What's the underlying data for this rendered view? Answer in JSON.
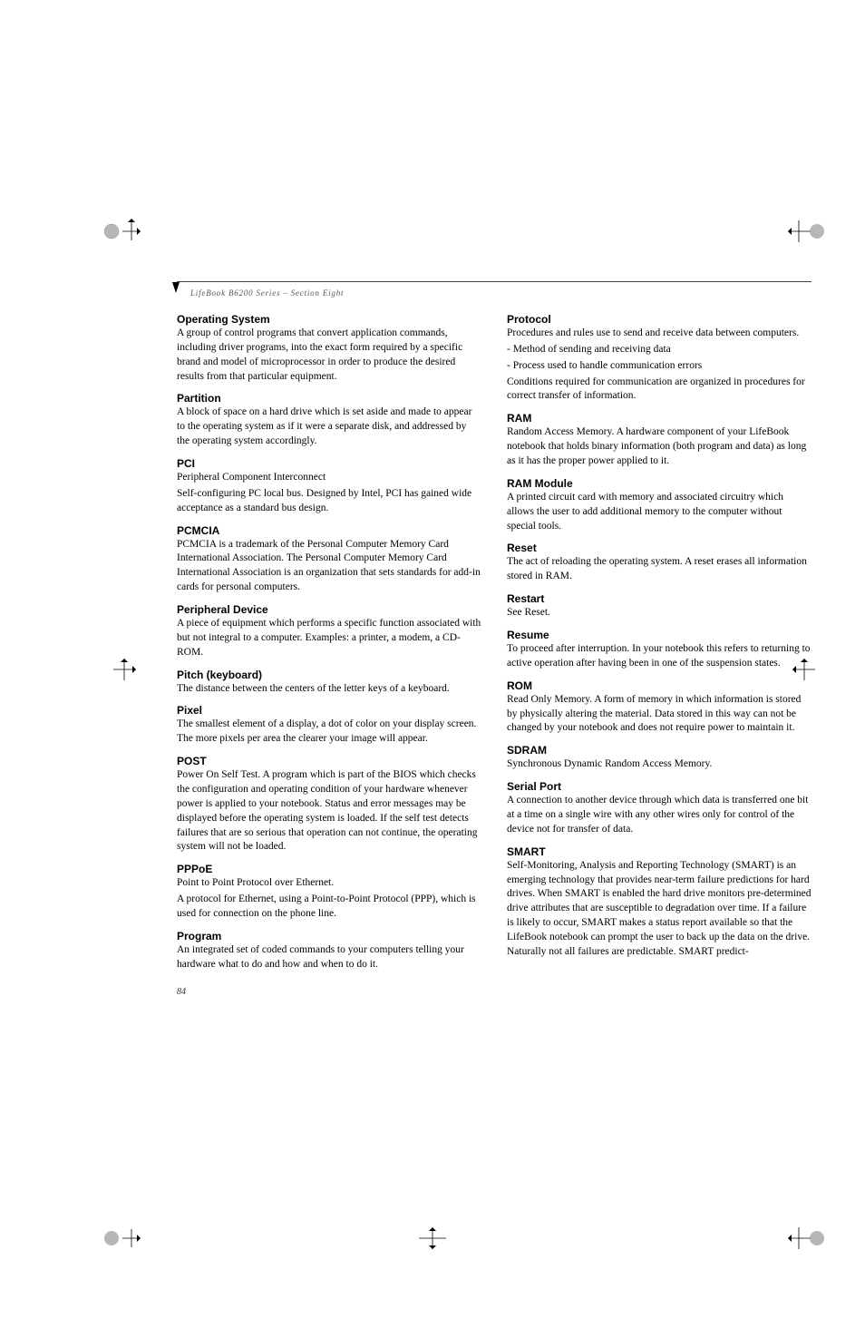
{
  "header": {
    "text": "LifeBook B6200 Series – Section Eight"
  },
  "pageNumber": "84",
  "leftColumn": [
    {
      "title": "Operating System",
      "paragraphs": [
        "A group of control programs that convert application commands, including driver programs, into the exact form required by a specific brand and model of microprocessor in order to produce the desired results from that particular equipment."
      ]
    },
    {
      "title": "Partition",
      "paragraphs": [
        "A block of space on a hard drive which is set aside and made to appear to the operating system as if it were a separate disk, and addressed by the operating system accordingly."
      ]
    },
    {
      "title": "PCI",
      "paragraphs": [
        "Peripheral Component Interconnect",
        "Self-configuring PC local bus. Designed by Intel, PCI has gained wide acceptance as a standard bus design."
      ]
    },
    {
      "title": "PCMCIA",
      "paragraphs": [
        "PCMCIA is a trademark of the Personal Computer Memory Card International Association. The Personal Computer Memory Card International Association is an organization that sets standards for add-in cards for personal computers."
      ]
    },
    {
      "title": "Peripheral Device",
      "paragraphs": [
        "A piece of equipment which performs a specific function associated with but not integral to a computer. Examples: a printer, a modem, a CD-ROM."
      ]
    },
    {
      "title": "Pitch (keyboard)",
      "paragraphs": [
        "The distance between the centers of the letter keys of a keyboard."
      ]
    },
    {
      "title": "Pixel",
      "paragraphs": [
        "The smallest element of a display, a dot of color on your display screen. The more pixels per area the clearer your image will appear."
      ]
    },
    {
      "title": "POST",
      "paragraphs": [
        "Power On Self Test. A program which is part of the BIOS which checks the configuration and operating condition of your hardware whenever power is applied to your notebook. Status and error messages may be displayed before the operating system is loaded. If the self test detects failures that are so serious that operation can not continue, the operating system will not be loaded."
      ]
    },
    {
      "title": "PPPoE",
      "paragraphs": [
        "Point to Point Protocol over Ethernet.",
        "A protocol for Ethernet, using a Point-to-Point Protocol (PPP), which is used for connection on the phone line."
      ]
    },
    {
      "title": "Program",
      "paragraphs": [
        "An integrated set of coded commands to your computers telling your hardware what to do and how and when to do it."
      ]
    }
  ],
  "rightColumn": [
    {
      "title": "Protocol",
      "paragraphs": [
        "Procedures and rules use to send and receive data between computers.",
        "- Method of sending and receiving data",
        "- Process used to handle communication errors",
        "Conditions required for communication are organized in procedures for correct transfer of information."
      ]
    },
    {
      "title": "RAM",
      "paragraphs": [
        "Random Access Memory. A hardware component of your LifeBook notebook that holds binary information (both program and data) as long as it has the proper power applied to it."
      ]
    },
    {
      "title": "RAM Module",
      "paragraphs": [
        "A printed circuit card with memory and associated circuitry which allows the user to add additional memory to the computer without special tools."
      ]
    },
    {
      "title": "Reset",
      "paragraphs": [
        "The act of reloading the operating system. A reset erases all information stored in RAM."
      ]
    },
    {
      "title": "Restart",
      "paragraphs": [
        "See Reset."
      ]
    },
    {
      "title": "Resume",
      "paragraphs": [
        "To proceed after interruption. In your notebook this refers to returning to active operation after having been in one of the suspension states."
      ]
    },
    {
      "title": "ROM",
      "paragraphs": [
        "Read Only Memory. A form of memory in which information is stored by physically altering the material. Data stored in this way can not be changed by your notebook and does not require power to maintain it."
      ]
    },
    {
      "title": "SDRAM",
      "paragraphs": [
        "Synchronous Dynamic Random Access Memory."
      ]
    },
    {
      "title": "Serial Port",
      "paragraphs": [
        "A connection to another device through which data is transferred one bit at a time on a single wire with any other wires only for control of the device not for transfer of data."
      ]
    },
    {
      "title": "SMART",
      "paragraphs": [
        "Self-Monitoring, Analysis and Reporting Technology (SMART) is an emerging technology that provides near-term failure predictions for hard drives. When SMART is enabled the hard drive monitors pre-determined drive attributes that are susceptible to degradation over time. If a failure is likely to occur, SMART makes a status report available so that the LifeBook notebook can prompt the user to back up the data on the drive. Naturally not all failures are predictable. SMART predict-"
      ]
    }
  ]
}
